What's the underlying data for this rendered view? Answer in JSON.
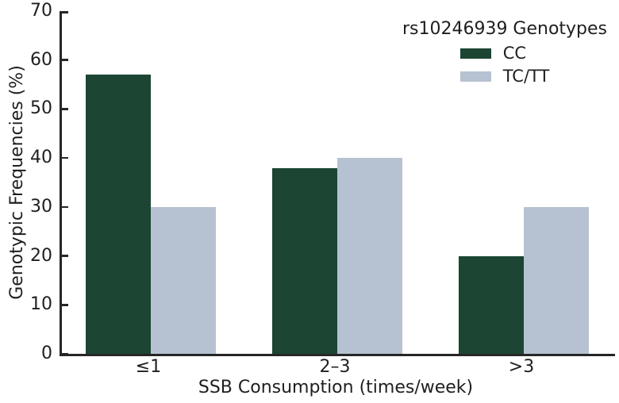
{
  "figure": {
    "background": "#ffffff",
    "axis_color": "#262626",
    "text_color": "#1f1f1f"
  },
  "chart_data": {
    "type": "bar",
    "title": "",
    "xlabel": "SSB Consumption (times/week)",
    "ylabel": "Genotypic Frequencies (%)",
    "categories": [
      "≤1",
      "2–3",
      ">3"
    ],
    "series": [
      {
        "name": "CC",
        "color": "#1c4533",
        "values": [
          57,
          38,
          20
        ]
      },
      {
        "name": "TC/TT",
        "color": "#b6c2d1",
        "values": [
          30,
          40,
          30
        ]
      }
    ],
    "ylim": [
      0,
      70
    ],
    "yticks": [
      0,
      10,
      20,
      30,
      40,
      50,
      60,
      70
    ],
    "grid": false,
    "legend": {
      "title": "rs10246939 Genotypes",
      "position": "upper right",
      "entries": [
        "CC",
        "TC/TT"
      ]
    }
  }
}
